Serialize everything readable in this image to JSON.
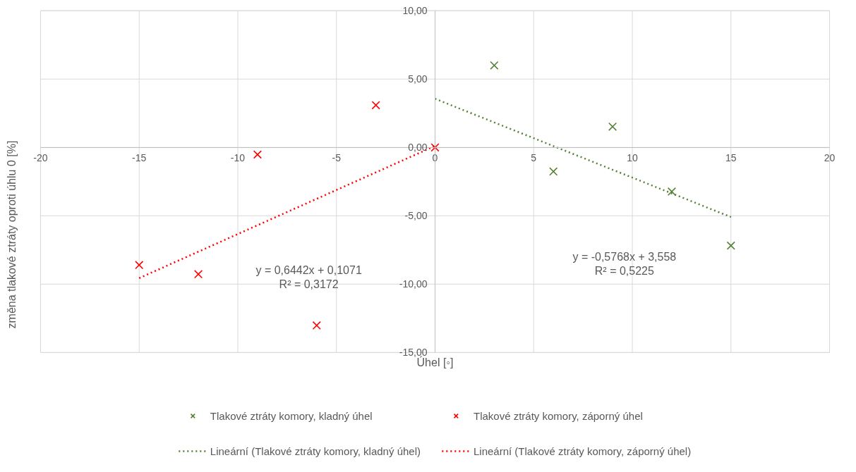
{
  "chart_data": {
    "type": "scatter",
    "xlabel": "Úhel [◦]",
    "ylabel": "změna tlakové ztráty oproti úhlu 0 [%]",
    "xlim": [
      -20,
      20
    ],
    "ylim": [
      -15,
      10
    ],
    "xticks": [
      -20,
      -15,
      -10,
      -5,
      0,
      5,
      10,
      15,
      20
    ],
    "yticks": [
      {
        "value": -15,
        "label": "-15,00"
      },
      {
        "value": -10,
        "label": "-10,00"
      },
      {
        "value": -5,
        "label": "-5,00"
      },
      {
        "value": 0,
        "label": "0,00"
      },
      {
        "value": 5,
        "label": "5,00"
      },
      {
        "value": 10,
        "label": "10,00"
      }
    ],
    "grid": true,
    "legend": "bottom",
    "marker": "cross",
    "series": [
      {
        "name": "Tlakové ztráty komory, kladný úhel",
        "color": "#548235",
        "x": [
          3,
          6,
          9,
          12,
          15
        ],
        "values": [
          6.0,
          -1.76,
          1.52,
          -3.23,
          -7.18
        ]
      },
      {
        "name": "Tlakové ztráty komory, záporný úhel",
        "color": "#ff0000",
        "x": [
          -15,
          -12,
          -9,
          -6,
          -3,
          0
        ],
        "values": [
          -8.6,
          -9.27,
          -0.52,
          -13.02,
          3.09,
          0.0
        ]
      },
      {
        "name": "Lineární (Tlakové ztráty komory, kladný úhel)",
        "type": "line",
        "marker": "none",
        "line_style": "dotted",
        "color": "#548235",
        "x": [
          0,
          15
        ],
        "values": [
          3.56,
          -5.09
        ]
      },
      {
        "name": "Lineární (Tlakové ztráty komory, záporný úhel)",
        "type": "line",
        "marker": "none",
        "line_style": "dotted",
        "color": "#ff0000",
        "x": [
          -15,
          0
        ],
        "values": [
          -9.56,
          0.11
        ]
      }
    ],
    "annotations": [
      "y = 0,6442x + 0,1071\nR² = 0,3172",
      "y = -0,5768x + 3,558\nR² = 0,5225"
    ]
  }
}
